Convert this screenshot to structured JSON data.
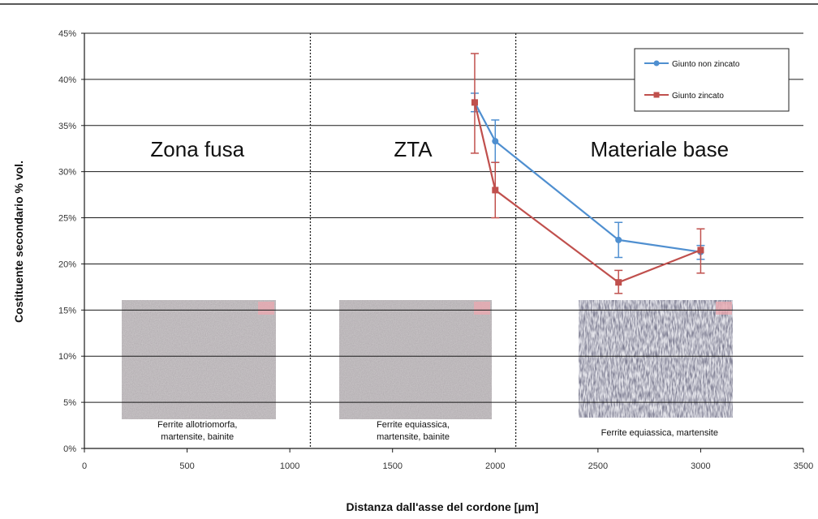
{
  "chart_data": {
    "type": "line",
    "title": "",
    "xlabel": "Distanza dall'asse del cordone [µm]",
    "ylabel": "Costituente secondario % vol.",
    "xlim": [
      0,
      3500
    ],
    "ylim": [
      0,
      45
    ],
    "x_ticks": [
      "0",
      "500",
      "1000",
      "1500",
      "2000",
      "2500",
      "3000",
      "3500"
    ],
    "y_ticks": [
      "0%",
      "5%",
      "10%",
      "15%",
      "20%",
      "25%",
      "30%",
      "35%",
      "40%",
      "45%"
    ],
    "grid": "horizontal",
    "legend_position": "top-right",
    "series": [
      {
        "name": "Giunto non zincato",
        "color": "#4f8fd0",
        "x": [
          1900,
          2000,
          2600,
          3000
        ],
        "y": [
          37.5,
          33.3,
          22.6,
          21.3
        ],
        "err_low": [
          36.5,
          31.0,
          20.7,
          20.5
        ],
        "err_high": [
          38.5,
          35.6,
          24.5,
          22.0
        ]
      },
      {
        "name": "Giunto zincato",
        "color": "#c0504d",
        "x": [
          1900,
          2000,
          2600,
          3000
        ],
        "y": [
          37.5,
          28.0,
          18.0,
          21.5
        ],
        "err_low": [
          32.0,
          25.0,
          16.8,
          19.0
        ],
        "err_high": [
          42.8,
          31.0,
          19.3,
          23.8
        ]
      }
    ],
    "dividers": [
      1100,
      2100
    ],
    "zones": [
      {
        "label": "Zona fusa",
        "x": 550,
        "caption": [
          "Ferrite allotriomorfa,",
          "martensite, bainite"
        ]
      },
      {
        "label": "ZTA",
        "x": 1600,
        "caption": [
          "Ferrite equiassica,",
          "martensite, bainite"
        ]
      },
      {
        "label": "Materiale base",
        "x": 2800,
        "caption": [
          "Ferrite equiassica, martensite"
        ]
      }
    ]
  }
}
